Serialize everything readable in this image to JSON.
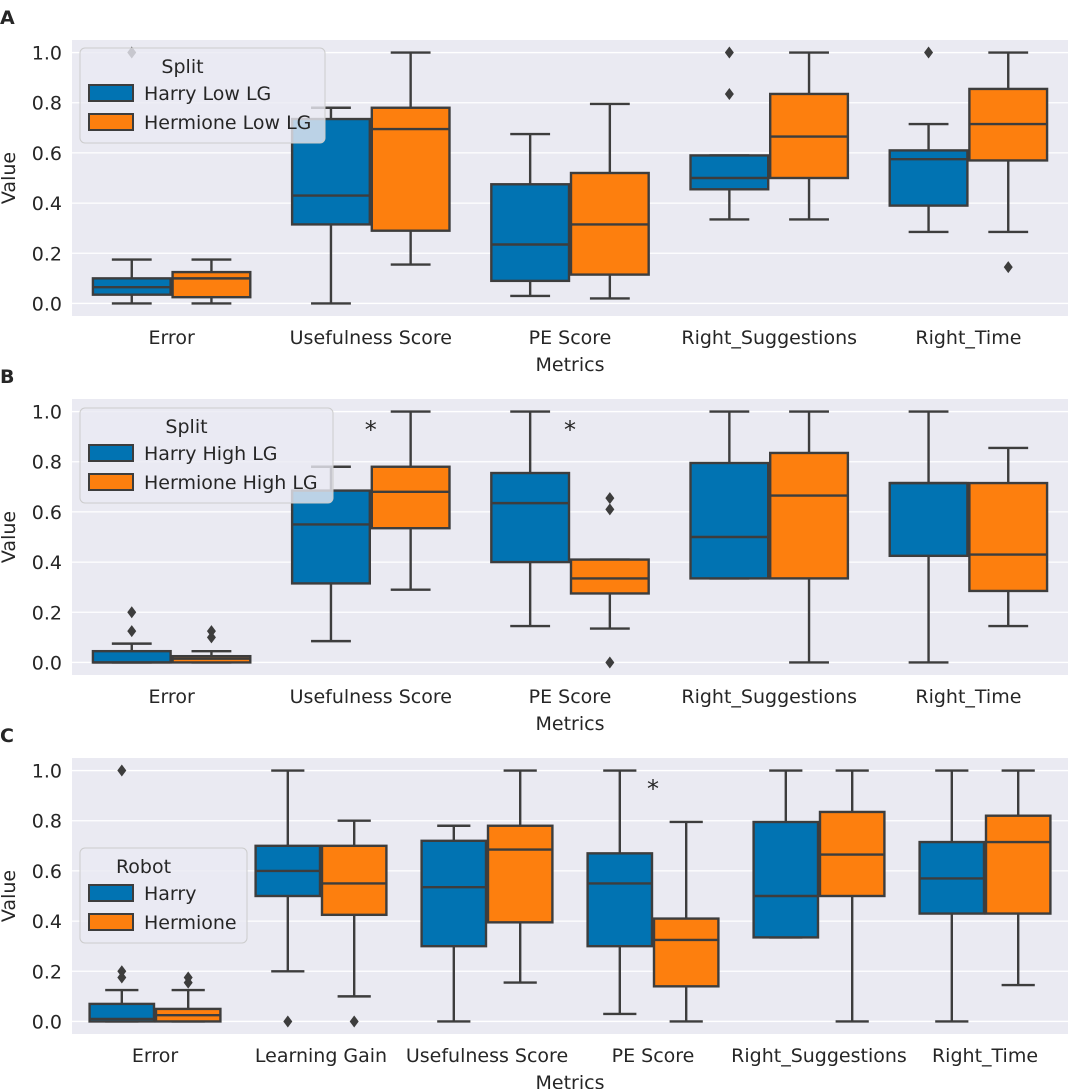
{
  "chart_data": [
    {
      "panel_label": "A",
      "type": "box",
      "xlabel": "Metrics",
      "ylabel": "Value",
      "ylim": [
        -0.05,
        1.05
      ],
      "yticks": [
        "0.0",
        "0.2",
        "0.4",
        "0.6",
        "0.8",
        "1.0"
      ],
      "categories": [
        "Error",
        "Usefulness Score",
        "PE Score",
        "Right_Suggestions",
        "Right_Time"
      ],
      "legend": {
        "title": "Split",
        "position": "upper-left"
      },
      "series": [
        {
          "name": "Harry Low LG",
          "color": "#0173b2",
          "boxes": [
            {
              "q1": 0.035,
              "median": 0.065,
              "q3": 0.1,
              "whislo": 0.0,
              "whishi": 0.175,
              "fliers": [
                1.0
              ]
            },
            {
              "q1": 0.315,
              "median": 0.43,
              "q3": 0.735,
              "whislo": 0.0,
              "whishi": 0.78,
              "fliers": []
            },
            {
              "q1": 0.09,
              "median": 0.235,
              "q3": 0.475,
              "whislo": 0.03,
              "whishi": 0.675,
              "fliers": []
            },
            {
              "q1": 0.455,
              "median": 0.5,
              "q3": 0.59,
              "whislo": 0.335,
              "whishi": 0.59,
              "fliers": [
                0.835,
                1.0
              ]
            },
            {
              "q1": 0.39,
              "median": 0.575,
              "q3": 0.61,
              "whislo": 0.285,
              "whishi": 0.715,
              "fliers": [
                1.0
              ]
            }
          ]
        },
        {
          "name": "Hermione Low LG",
          "color": "#fd7f0e",
          "boxes": [
            {
              "q1": 0.025,
              "median": 0.1,
              "q3": 0.125,
              "whislo": 0.0,
              "whishi": 0.175,
              "fliers": []
            },
            {
              "q1": 0.29,
              "median": 0.695,
              "q3": 0.78,
              "whislo": 0.155,
              "whishi": 1.0,
              "fliers": []
            },
            {
              "q1": 0.115,
              "median": 0.315,
              "q3": 0.52,
              "whislo": 0.02,
              "whishi": 0.795,
              "fliers": []
            },
            {
              "q1": 0.5,
              "median": 0.665,
              "q3": 0.835,
              "whislo": 0.335,
              "whishi": 1.0,
              "fliers": []
            },
            {
              "q1": 0.57,
              "median": 0.715,
              "q3": 0.855,
              "whislo": 0.285,
              "whishi": 1.0,
              "fliers": [
                0.145
              ]
            }
          ]
        }
      ],
      "annotations": []
    },
    {
      "panel_label": "B",
      "type": "box",
      "xlabel": "Metrics",
      "ylabel": "Value",
      "ylim": [
        -0.05,
        1.05
      ],
      "yticks": [
        "0.0",
        "0.2",
        "0.4",
        "0.6",
        "0.8",
        "1.0"
      ],
      "categories": [
        "Error",
        "Usefulness Score",
        "PE Score",
        "Right_Suggestions",
        "Right_Time"
      ],
      "legend": {
        "title": "Split",
        "position": "upper-left"
      },
      "series": [
        {
          "name": "Harry High LG",
          "color": "#0173b2",
          "boxes": [
            {
              "q1": 0.0,
              "median": 0.0,
              "q3": 0.045,
              "whislo": 0.0,
              "whishi": 0.075,
              "fliers": [
                0.125,
                0.2
              ]
            },
            {
              "q1": 0.315,
              "median": 0.55,
              "q3": 0.685,
              "whislo": 0.085,
              "whishi": 0.78,
              "fliers": []
            },
            {
              "q1": 0.4,
              "median": 0.635,
              "q3": 0.755,
              "whislo": 0.145,
              "whishi": 1.0,
              "fliers": []
            },
            {
              "q1": 0.335,
              "median": 0.5,
              "q3": 0.795,
              "whislo": 0.335,
              "whishi": 1.0,
              "fliers": []
            },
            {
              "q1": 0.425,
              "median": 0.715,
              "q3": 0.715,
              "whislo": 0.0,
              "whishi": 1.0,
              "fliers": []
            }
          ]
        },
        {
          "name": "Hermione High LG",
          "color": "#fd7f0e",
          "boxes": [
            {
              "q1": 0.0,
              "median": 0.015,
              "q3": 0.025,
              "whislo": 0.0,
              "whishi": 0.045,
              "fliers": [
                0.1,
                0.125
              ]
            },
            {
              "q1": 0.535,
              "median": 0.68,
              "q3": 0.78,
              "whislo": 0.29,
              "whishi": 1.0,
              "fliers": []
            },
            {
              "q1": 0.275,
              "median": 0.335,
              "q3": 0.41,
              "whislo": 0.135,
              "whishi": 0.41,
              "fliers": [
                0.0,
                0.61,
                0.655
              ]
            },
            {
              "q1": 0.335,
              "median": 0.665,
              "q3": 0.835,
              "whislo": 0.0,
              "whishi": 1.0,
              "fliers": []
            },
            {
              "q1": 0.285,
              "median": 0.43,
              "q3": 0.715,
              "whislo": 0.145,
              "whishi": 0.855,
              "fliers": []
            }
          ]
        }
      ],
      "annotations": [
        {
          "text": "*",
          "category_index": 1,
          "y": 0.95
        },
        {
          "text": "*",
          "category_index": 2,
          "y": 0.95
        }
      ]
    },
    {
      "panel_label": "C",
      "type": "box",
      "xlabel": "Metrics",
      "ylabel": "Value",
      "ylim": [
        -0.05,
        1.05
      ],
      "yticks": [
        "0.0",
        "0.2",
        "0.4",
        "0.6",
        "0.8",
        "1.0"
      ],
      "categories": [
        "Error",
        "Learning Gain",
        "Usefulness Score",
        "PE Score",
        "Right_Suggestions",
        "Right_Time"
      ],
      "legend": {
        "title": "Robot",
        "position": "center-left"
      },
      "series": [
        {
          "name": "Harry",
          "color": "#0173b2",
          "boxes": [
            {
              "q1": 0.0,
              "median": 0.01,
              "q3": 0.07,
              "whislo": 0.0,
              "whishi": 0.125,
              "fliers": [
                0.175,
                0.2,
                1.0
              ]
            },
            {
              "q1": 0.5,
              "median": 0.6,
              "q3": 0.7,
              "whislo": 0.2,
              "whishi": 1.0,
              "fliers": [
                0.0
              ]
            },
            {
              "q1": 0.3,
              "median": 0.535,
              "q3": 0.72,
              "whislo": 0.0,
              "whishi": 0.78,
              "fliers": []
            },
            {
              "q1": 0.3,
              "median": 0.55,
              "q3": 0.67,
              "whislo": 0.03,
              "whishi": 1.0,
              "fliers": []
            },
            {
              "q1": 0.335,
              "median": 0.5,
              "q3": 0.795,
              "whislo": 0.335,
              "whishi": 1.0,
              "fliers": []
            },
            {
              "q1": 0.43,
              "median": 0.57,
              "q3": 0.715,
              "whislo": 0.0,
              "whishi": 1.0,
              "fliers": []
            }
          ]
        },
        {
          "name": "Hermione",
          "color": "#fd7f0e",
          "boxes": [
            {
              "q1": 0.0,
              "median": 0.025,
              "q3": 0.05,
              "whislo": 0.0,
              "whishi": 0.125,
              "fliers": [
                0.155,
                0.175
              ]
            },
            {
              "q1": 0.425,
              "median": 0.55,
              "q3": 0.7,
              "whislo": 0.1,
              "whishi": 0.8,
              "fliers": [
                0.0
              ]
            },
            {
              "q1": 0.395,
              "median": 0.685,
              "q3": 0.78,
              "whislo": 0.155,
              "whishi": 1.0,
              "fliers": []
            },
            {
              "q1": 0.14,
              "median": 0.325,
              "q3": 0.41,
              "whislo": 0.0,
              "whishi": 0.795,
              "fliers": []
            },
            {
              "q1": 0.5,
              "median": 0.665,
              "q3": 0.835,
              "whislo": 0.0,
              "whishi": 1.0,
              "fliers": []
            },
            {
              "q1": 0.43,
              "median": 0.715,
              "q3": 0.82,
              "whislo": 0.145,
              "whishi": 1.0,
              "fliers": []
            }
          ]
        }
      ],
      "annotations": [
        {
          "text": "*",
          "category_index": 3,
          "y": 0.95
        }
      ]
    }
  ]
}
